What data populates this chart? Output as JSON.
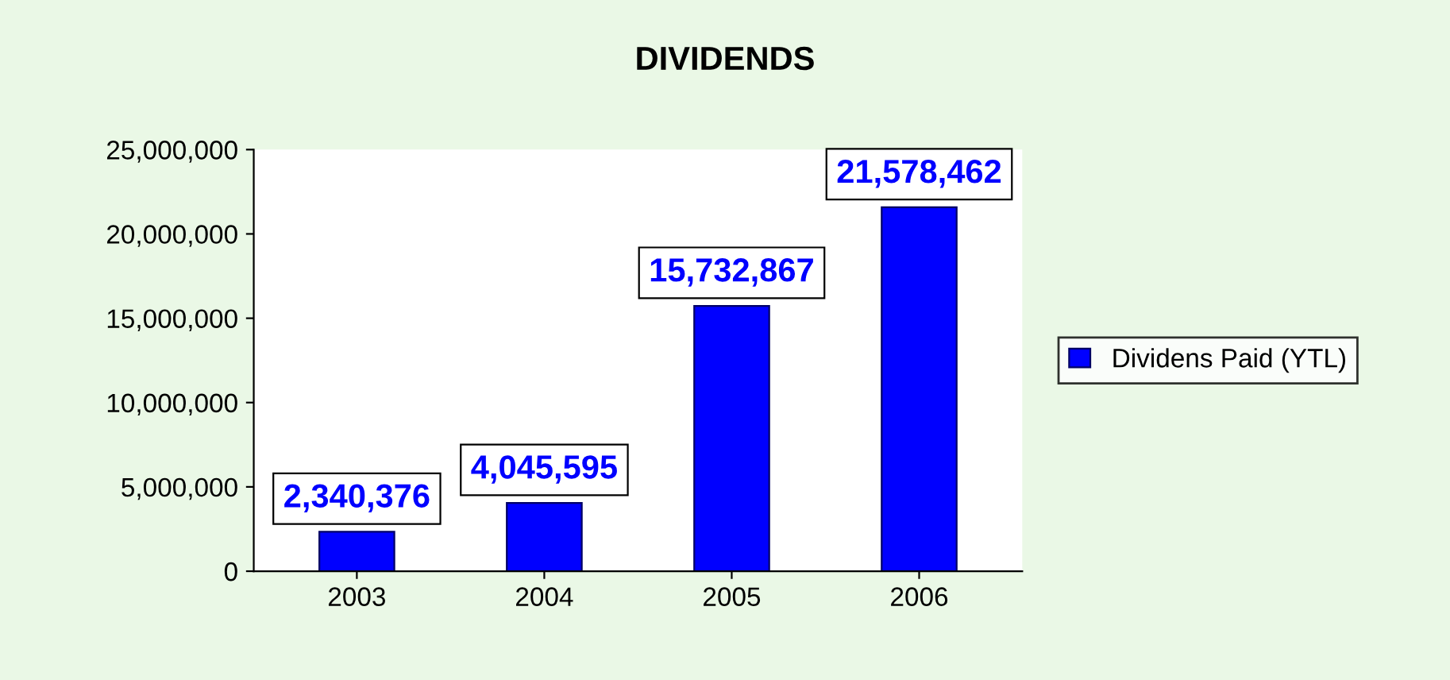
{
  "chart_data": {
    "type": "bar",
    "title": "DIVIDENDS",
    "categories": [
      "2003",
      "2004",
      "2005",
      "2006"
    ],
    "series": [
      {
        "name": "Dividens Paid (YTL)",
        "color": "#0000ff",
        "values": [
          2340376,
          4045595,
          15732867,
          21578462
        ],
        "value_labels": [
          "2,340,376",
          "4,045,595",
          "15,732,867",
          "21,578,462"
        ]
      }
    ],
    "ylim": [
      0,
      25000000
    ],
    "yticks": [
      {
        "value": 0,
        "label": "0"
      },
      {
        "value": 5000000,
        "label": "5,000,000"
      },
      {
        "value": 10000000,
        "label": "10,000,000"
      },
      {
        "value": 15000000,
        "label": "15,000,000"
      },
      {
        "value": 20000000,
        "label": "20,000,000"
      },
      {
        "value": 25000000,
        "label": "25,000,000"
      }
    ],
    "legend": "right",
    "grid": false
  }
}
